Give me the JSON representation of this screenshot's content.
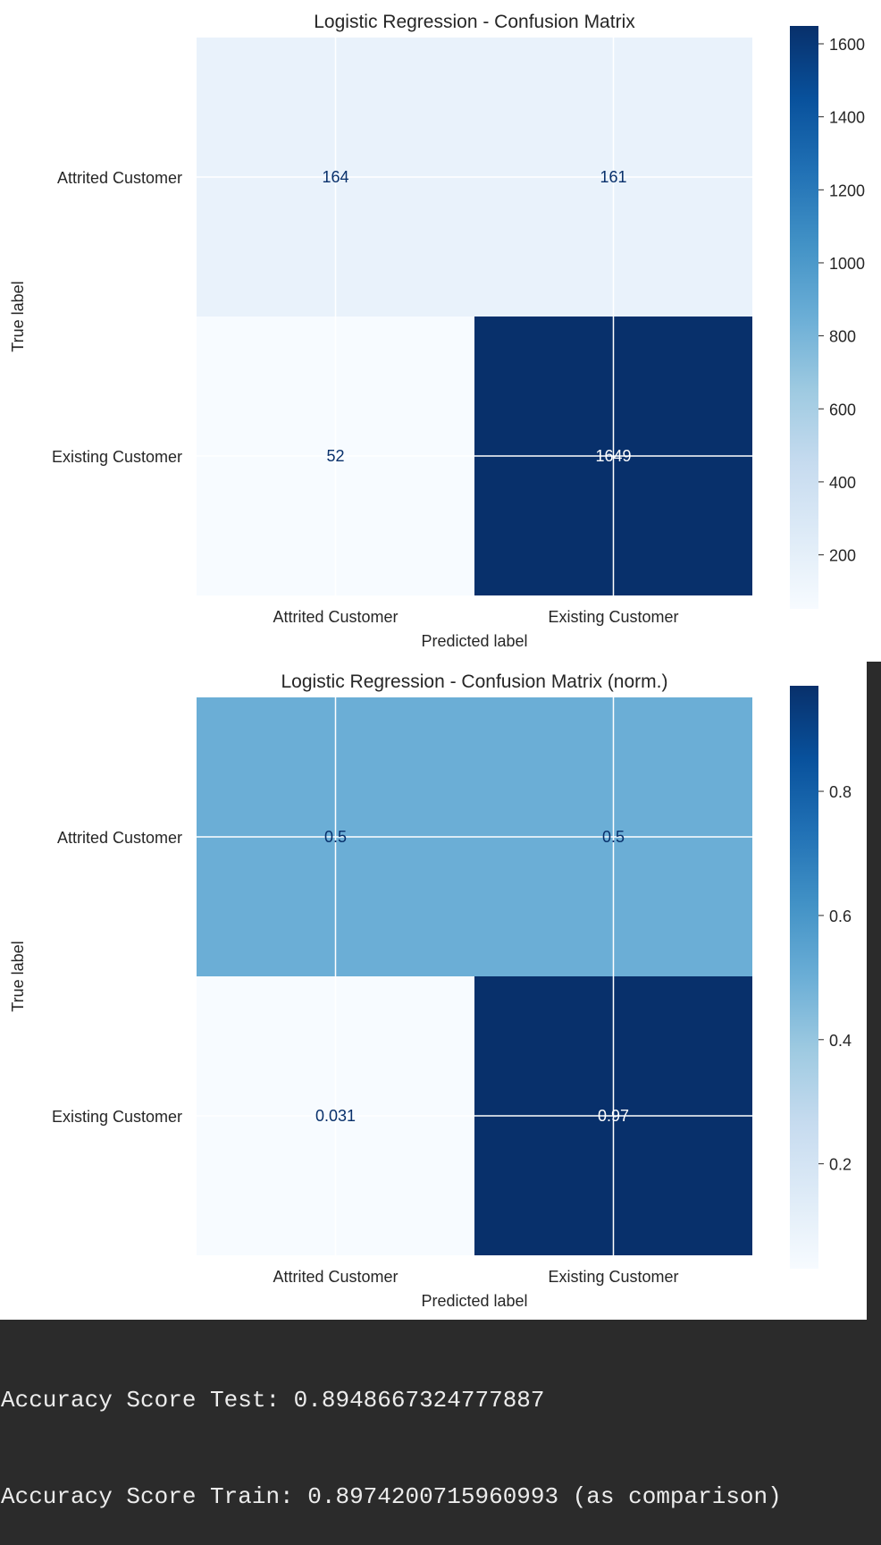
{
  "chart_data": [
    {
      "type": "heatmap",
      "title": "Logistic Regression - Confusion Matrix",
      "xlabel": "Predicted label",
      "ylabel": "True label",
      "x_categories": [
        "Attrited Customer",
        "Existing Customer"
      ],
      "y_categories": [
        "Attrited Customer",
        "Existing Customer"
      ],
      "values": [
        [
          164,
          161
        ],
        [
          52,
          1649
        ]
      ],
      "cell_labels": [
        [
          "164",
          "161"
        ],
        [
          "52",
          "1649"
        ]
      ],
      "colormap": "Blues",
      "colorbar": {
        "min": 52,
        "max": 1649,
        "ticks": [
          200,
          400,
          600,
          800,
          1000,
          1200,
          1400,
          1600
        ]
      },
      "grid": true
    },
    {
      "type": "heatmap",
      "title": "Logistic Regression - Confusion Matrix (norm.)",
      "xlabel": "Predicted label",
      "ylabel": "True label",
      "x_categories": [
        "Attrited Customer",
        "Existing Customer"
      ],
      "y_categories": [
        "Attrited Customer",
        "Existing Customer"
      ],
      "values": [
        [
          0.5,
          0.5
        ],
        [
          0.031,
          0.97
        ]
      ],
      "cell_labels": [
        [
          "0.5",
          "0.5"
        ],
        [
          "0.031",
          "0.97"
        ]
      ],
      "colormap": "Blues",
      "colorbar": {
        "min": 0.031,
        "max": 0.97,
        "ticks": [
          0.2,
          0.4,
          0.6,
          0.8
        ]
      },
      "grid": true
    }
  ],
  "console": {
    "line1": "Accuracy Score Test: 0.8948667324777887",
    "line2": "Accuracy Score Train: 0.8974200715960993 (as comparison)"
  },
  "colors": {
    "console_bg": "#2b2b2b",
    "console_text": "#ececec"
  }
}
